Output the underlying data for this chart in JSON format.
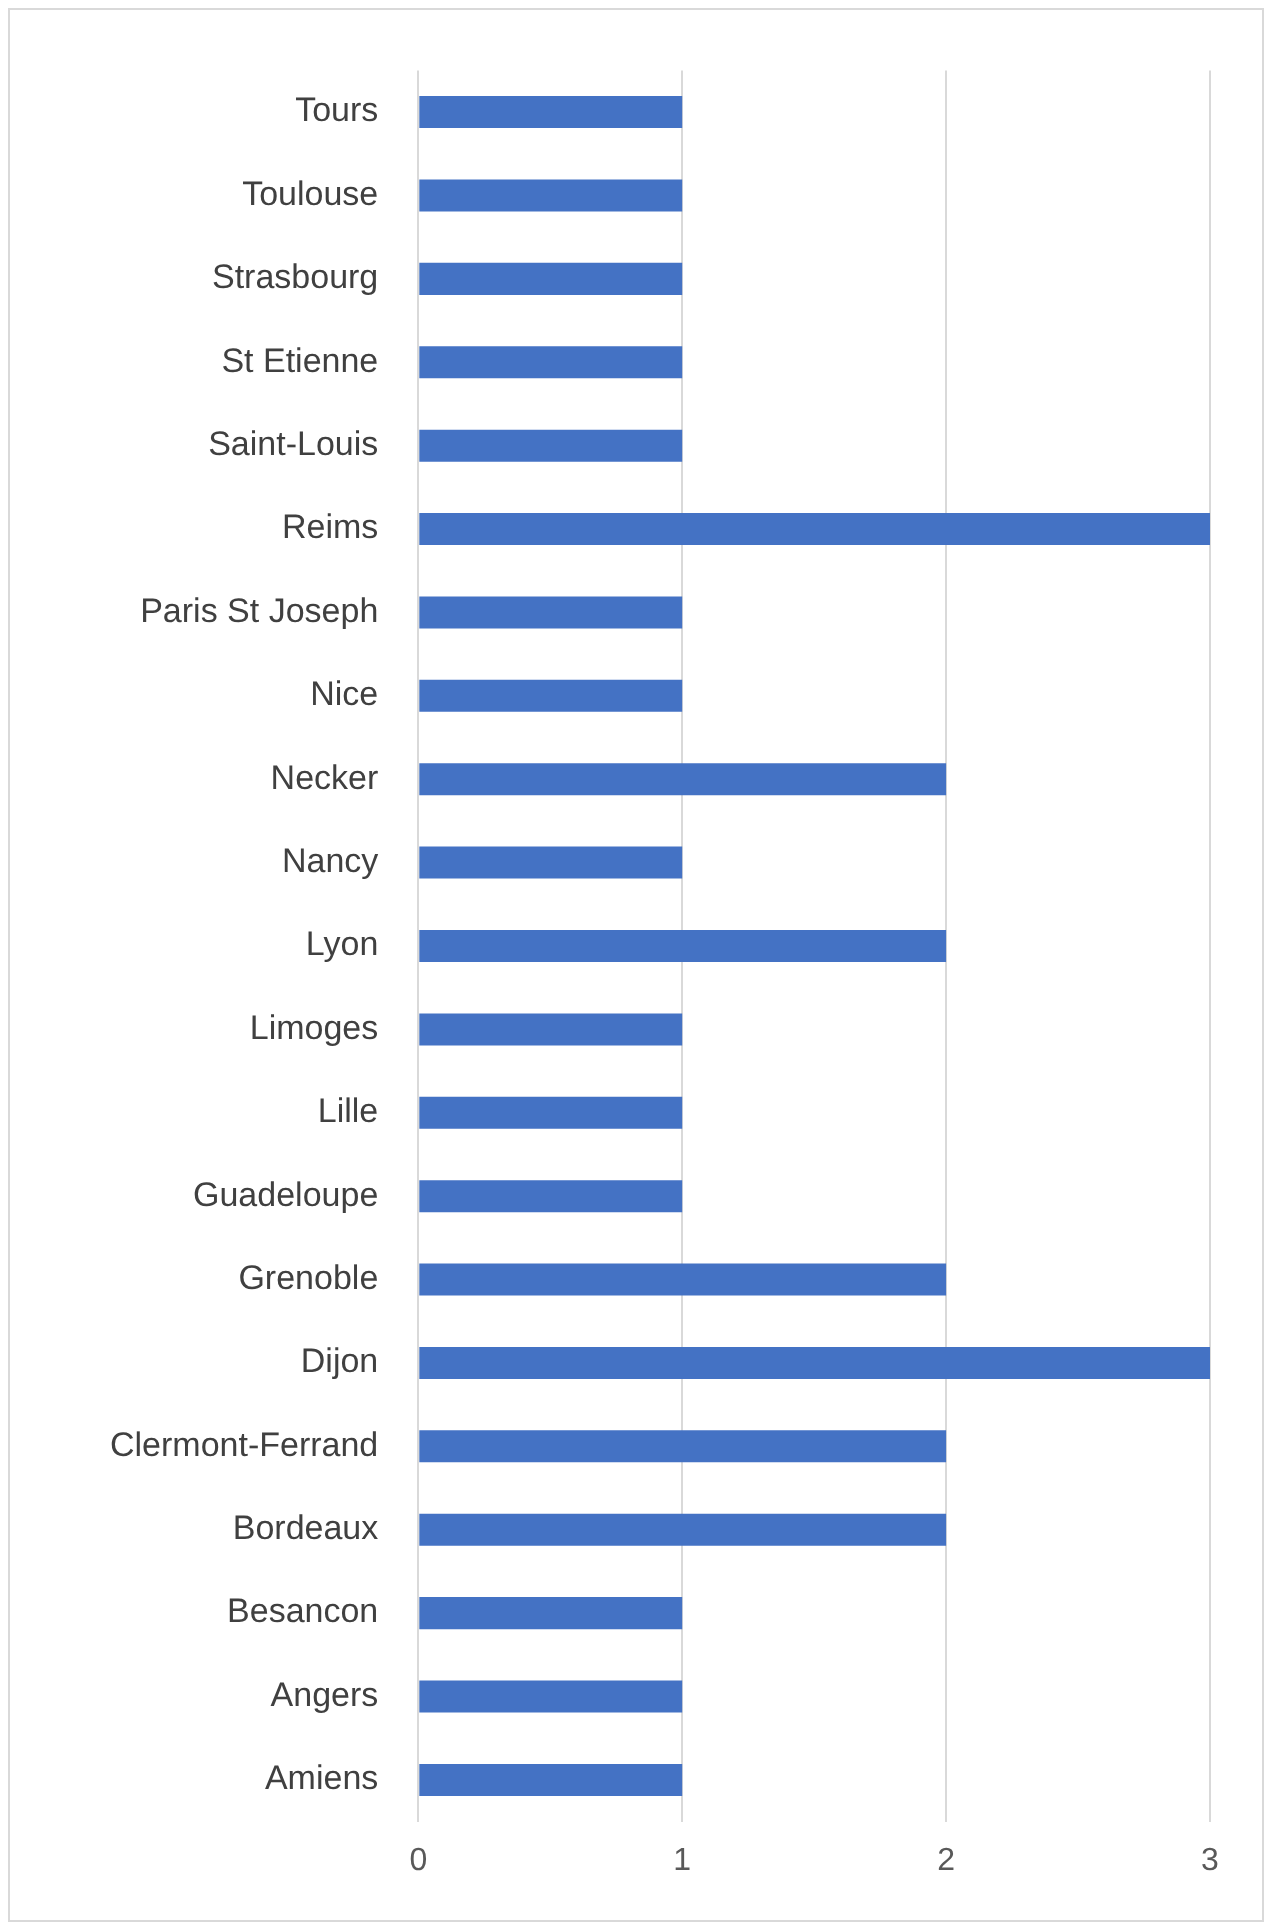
{
  "chart_data": {
    "type": "bar",
    "orientation": "horizontal",
    "categories": [
      "Tours",
      "Toulouse",
      "Strasbourg",
      "St Etienne",
      "Saint-Louis",
      "Reims",
      "Paris St Joseph",
      "Nice",
      "Necker",
      "Nancy",
      "Lyon",
      "Limoges",
      "Lille",
      "Guadeloupe",
      "Grenoble",
      "Dijon",
      "Clermont-Ferrand",
      "Bordeaux",
      "Besancon",
      "Angers",
      "Amiens"
    ],
    "values": [
      1,
      1,
      1,
      1,
      1,
      3,
      1,
      1,
      2,
      1,
      2,
      1,
      1,
      1,
      2,
      3,
      2,
      2,
      1,
      1,
      1
    ],
    "color": "#4472c4",
    "xlim": [
      0,
      3
    ],
    "xticks": [
      0,
      1,
      2,
      3
    ],
    "grid": "x",
    "legend": false
  }
}
